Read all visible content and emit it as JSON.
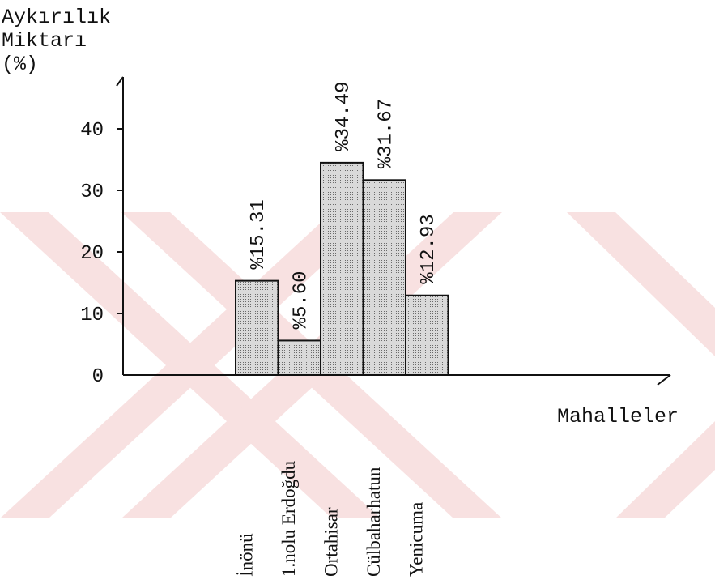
{
  "chart_data": {
    "type": "bar",
    "ylabel_lines": [
      "Aykırılık",
      "Miktarı",
      "(%)"
    ],
    "xlabel": "Mahalleler",
    "categories": [
      "İnönü",
      "1.nolu Erdoğdu",
      "Ortahisar",
      "Cülbaharhatun",
      "Yenicuma"
    ],
    "values": [
      15.31,
      5.6,
      34.49,
      31.67,
      12.93
    ],
    "value_labels": [
      "%15.31",
      "%5.60",
      "%34.49",
      "%31.67",
      "%12.93"
    ],
    "yticks": [
      "0",
      "10",
      "20",
      "30",
      "40"
    ],
    "ylim": [
      0,
      50
    ],
    "grid": false,
    "colors": {
      "bar_fill": "#c4c4c4",
      "stroke": "#111111",
      "watermark": "#f3c9c9"
    }
  }
}
